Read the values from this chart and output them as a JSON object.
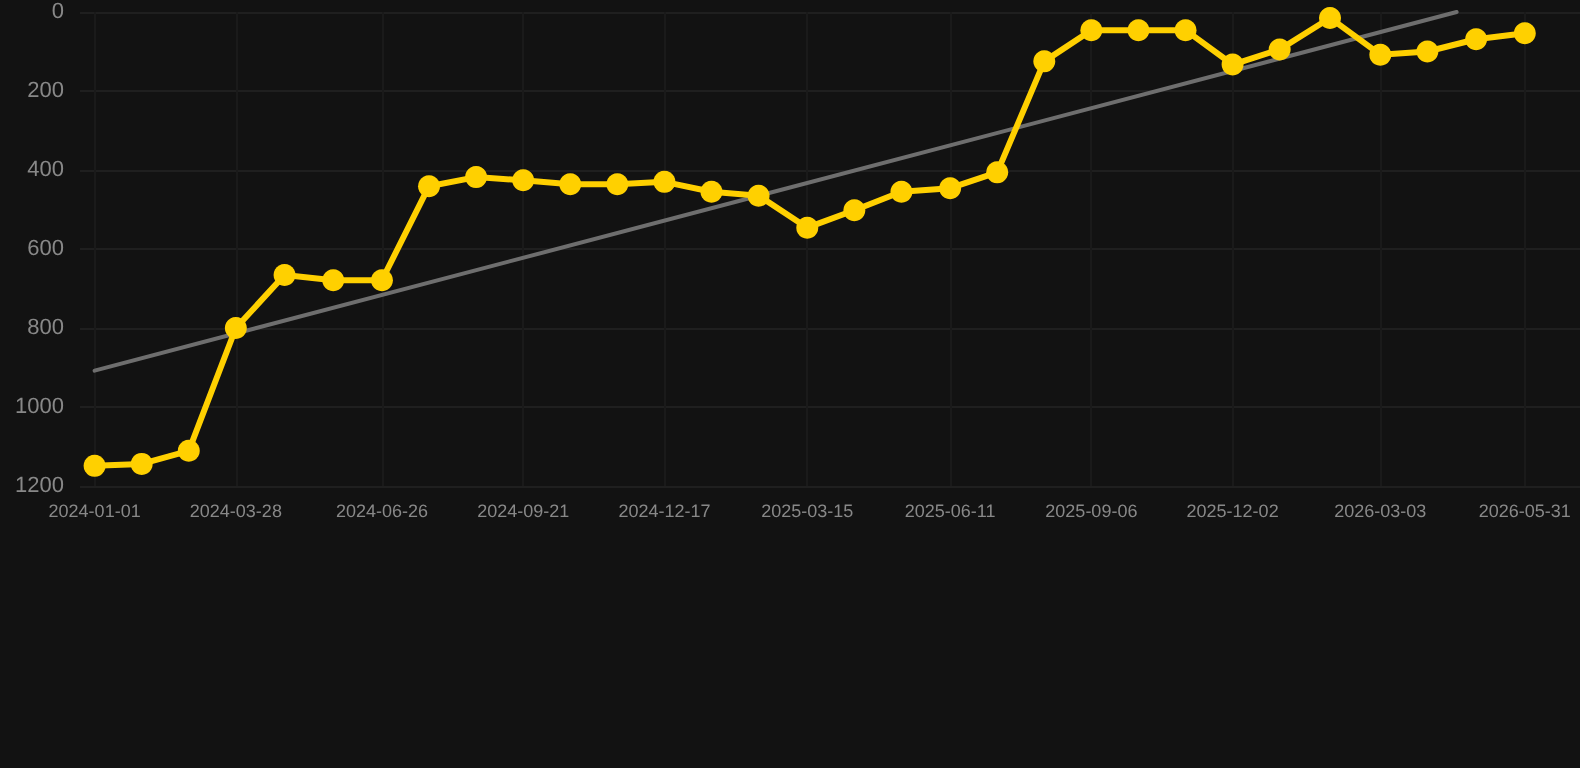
{
  "chart_data": {
    "type": "line",
    "x": [
      "2024-01-01",
      "2024-01-30",
      "2024-02-28",
      "2024-03-28",
      "2024-04-27",
      "2024-05-27",
      "2024-06-26",
      "2024-07-25",
      "2024-08-23",
      "2024-09-21",
      "2024-10-20",
      "2024-11-18",
      "2024-12-17",
      "2025-01-15",
      "2025-02-13",
      "2025-03-15",
      "2025-04-13",
      "2025-05-12",
      "2025-06-11",
      "2025-07-10",
      "2025-08-08",
      "2025-09-06",
      "2025-10-05",
      "2025-11-03",
      "2025-12-02",
      "2025-12-31",
      "2026-01-31",
      "2026-03-03",
      "2026-04-01",
      "2026-05-01",
      "2026-05-31"
    ],
    "series": [
      {
        "color": "#ffd000",
        "marker": "circle",
        "values": [
          1149,
          1144,
          1111,
          800,
          666,
          679,
          679,
          441,
          418,
          426,
          436,
          436,
          430,
          455,
          465,
          546,
          502,
          455,
          446,
          406,
          125,
          46,
          46,
          46,
          133,
          95,
          15,
          108,
          100,
          69,
          54
        ]
      },
      {
        "type": "line",
        "color": "#6e6e6e",
        "marker": "none",
        "x": [
          "2024-01-01",
          "2026-04-19"
        ],
        "values": [
          908,
          0
        ]
      }
    ],
    "xlim": [
      "2023-12-23",
      "2026-07-04"
    ],
    "xticks": [
      "2024-01-01",
      "2024-03-28",
      "2024-06-26",
      "2024-09-21",
      "2024-12-17",
      "2025-03-15",
      "2025-06-11",
      "2025-09-06",
      "2025-12-02",
      "2026-03-03",
      "2026-05-31"
    ],
    "ylim": [
      1200,
      0
    ],
    "yticks": [
      0,
      200,
      400,
      600,
      800,
      1000,
      1200
    ],
    "grid": true,
    "line_style": "solid"
  }
}
